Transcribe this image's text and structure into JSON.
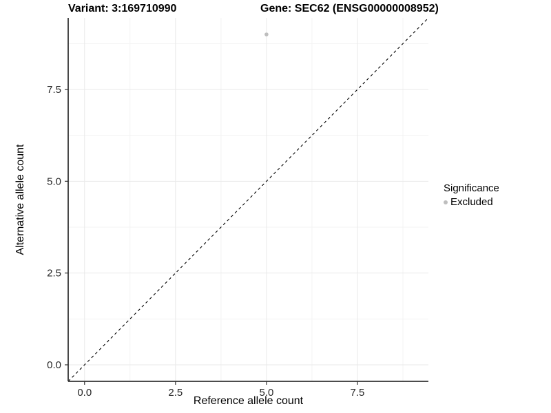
{
  "chart_data": {
    "type": "scatter",
    "title_left": "Variant: 3:169710990",
    "title_right": "Gene: SEC62 (ENSG00000008952)",
    "xlabel": "Reference allele count",
    "ylabel": "Alternative allele count",
    "xlim": [
      -0.45,
      9.45
    ],
    "ylim": [
      -0.45,
      9.45
    ],
    "x_ticks": {
      "values": [
        0,
        2.5,
        5,
        7.5
      ],
      "labels": [
        "0.0",
        "2.5",
        "5.0",
        "7.5"
      ]
    },
    "y_ticks": {
      "values": [
        0,
        2.5,
        5,
        7.5
      ],
      "labels": [
        "0.0",
        "2.5",
        "5.0",
        "7.5"
      ]
    },
    "minor_ticks": [
      1.25,
      3.75,
      6.25,
      8.75
    ],
    "grid": true,
    "points": [
      {
        "x": 5,
        "y": 9,
        "series": "Excluded",
        "color": "#bebebe"
      }
    ],
    "identity_line": {
      "style": "dashed",
      "color": "#000000",
      "from": [
        -0.45,
        -0.45
      ],
      "to": [
        9.45,
        9.45
      ]
    },
    "legend": {
      "title": "Significance",
      "position": "right",
      "items": [
        {
          "label": "Excluded",
          "color": "#bebebe"
        }
      ]
    },
    "colors": {
      "grid_major": "#e9e9e9",
      "grid_minor": "#f3f3f3",
      "axis_line": "#333333",
      "tick_text": "#262626",
      "point": "#bebebe"
    }
  }
}
